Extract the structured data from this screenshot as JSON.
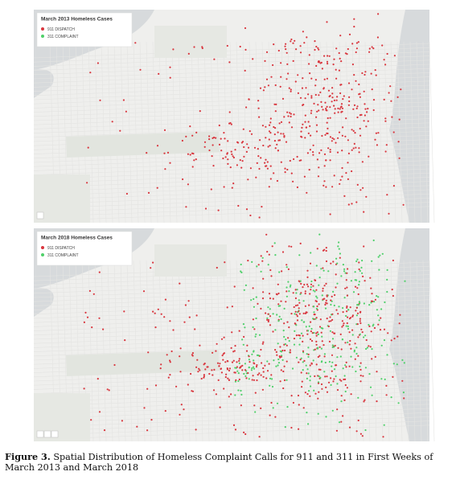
{
  "figure": {
    "maps": [
      {
        "title": "March 2013 Homeless Cases",
        "legend": [
          {
            "label": "911 DISPATCH",
            "color": "#d9363e"
          },
          {
            "label": "311 COMPLAINT",
            "color": "#4fd06a"
          }
        ]
      },
      {
        "title": "March 2018 Homeless Cases",
        "legend": [
          {
            "label": "911 DISPATCH",
            "color": "#d9363e"
          },
          {
            "label": "311 COMPLAINT",
            "color": "#4fd06a"
          }
        ]
      }
    ],
    "caption": {
      "label": "Figure 3.",
      "text": "Spatial Distribution of Homeless Complaint Calls for 911 and 311 in First Weeks of March 2013 and March 2018"
    }
  }
}
